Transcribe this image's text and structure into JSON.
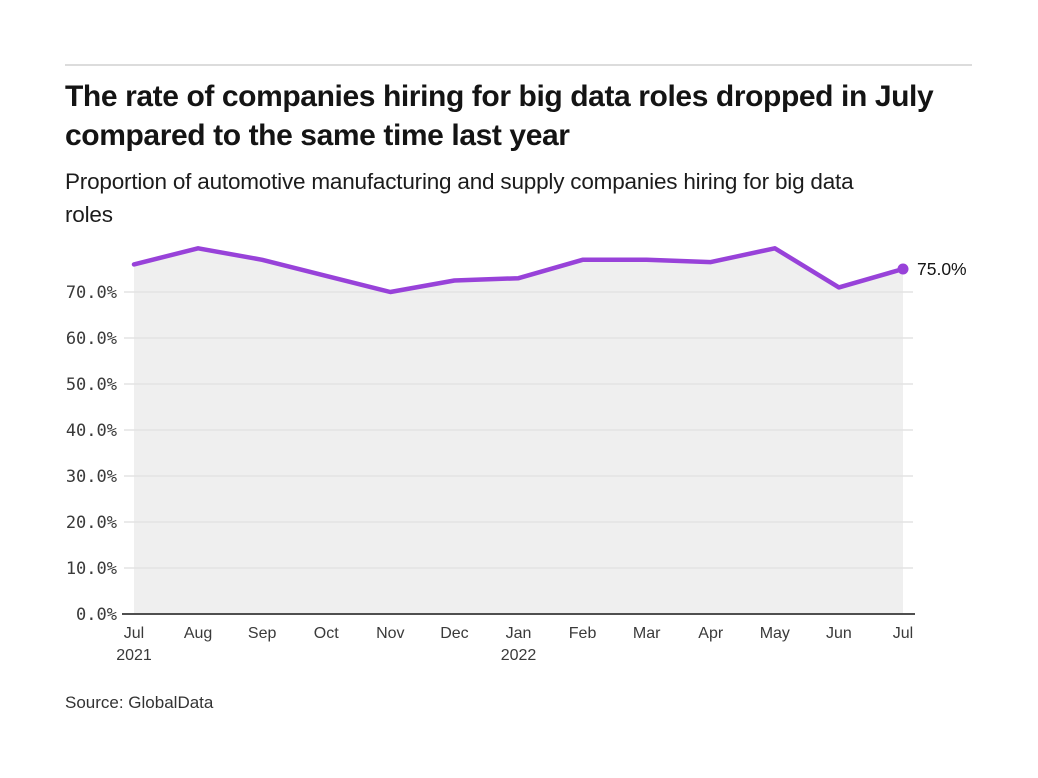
{
  "header": {
    "title": "The rate of companies hiring for big data roles dropped in July compared to the same time last year",
    "subtitle": "Proportion of automotive manufacturing and supply companies hiring for big data roles"
  },
  "footer": {
    "source": "Source: GlobalData"
  },
  "chart_data": {
    "type": "area",
    "title": "Proportion of automotive manufacturing and supply companies hiring for big data roles",
    "x": [
      "Jul 2021",
      "Aug 2021",
      "Sep 2021",
      "Oct 2021",
      "Nov 2021",
      "Dec 2021",
      "Jan 2022",
      "Feb 2022",
      "Mar 2022",
      "Apr 2022",
      "May 2022",
      "Jun 2022",
      "Jul 2022"
    ],
    "x_tick_labels": [
      [
        "Jul",
        "2021"
      ],
      [
        "Aug"
      ],
      [
        "Sep"
      ],
      [
        "Oct"
      ],
      [
        "Nov"
      ],
      [
        "Dec"
      ],
      [
        "Jan",
        "2022"
      ],
      [
        "Feb"
      ],
      [
        "Mar"
      ],
      [
        "Apr"
      ],
      [
        "May"
      ],
      [
        "Jun"
      ],
      [
        "Jul"
      ]
    ],
    "series": [
      {
        "name": "Proportion of companies hiring for big data roles",
        "values": [
          76.0,
          79.5,
          77.0,
          73.5,
          70.0,
          72.5,
          73.0,
          77.0,
          77.0,
          76.5,
          79.5,
          71.0,
          75.0
        ]
      }
    ],
    "y_ticks": [
      "0.0%",
      "10.0%",
      "20.0%",
      "30.0%",
      "40.0%",
      "50.0%",
      "60.0%",
      "70.0%"
    ],
    "y_tick_values": [
      0,
      10,
      20,
      30,
      40,
      50,
      60,
      70
    ],
    "ylim": [
      0,
      80
    ],
    "grid": true,
    "legend": "none",
    "last_point_label": "75.0%",
    "colors": {
      "line": "#9842d9",
      "dot": "#9842d9",
      "fill": "#efefef",
      "grid": "#e4e4e4",
      "axis": "#4f4f4f",
      "tick_text": "#3a3a3a",
      "annotation_text": "#141414"
    }
  }
}
